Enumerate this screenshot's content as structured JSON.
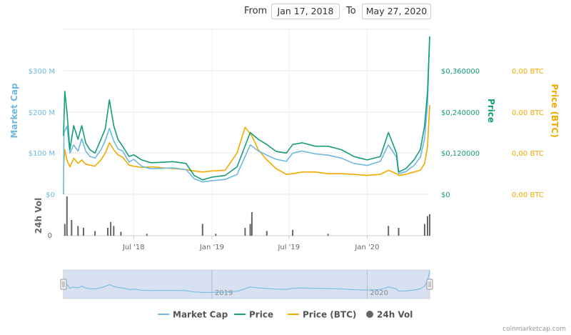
{
  "range": {
    "from_label": "From",
    "from_value": "Jan 17, 2018",
    "to_label": "To",
    "to_value": "May 27, 2020"
  },
  "colors": {
    "market_cap": "#6cb8e0",
    "price": "#139d77",
    "price_btc": "#f2a900",
    "volume": "#666666",
    "navigator_fill": "#c9d7ec"
  },
  "chart_data": {
    "type": "line",
    "x_start": "2018-01-17",
    "x_end": "2020-05-27",
    "x_ticks": [
      {
        "date": "2018-07-01",
        "label": "Jul '18"
      },
      {
        "date": "2019-01-01",
        "label": "Jan '19"
      },
      {
        "date": "2019-07-01",
        "label": "Jul '19"
      },
      {
        "date": "2020-01-01",
        "label": "Jan '20"
      }
    ],
    "navigator_ticks": [
      {
        "date": "2019-01-01",
        "label": "2019"
      },
      {
        "date": "2020-01-01",
        "label": "2020"
      }
    ],
    "axes": {
      "market_cap": {
        "title": "Market Cap",
        "ylim": [
          0,
          300000000
        ],
        "ticks": [
          "$0",
          "$100 M",
          "$200 M",
          "$300 M"
        ]
      },
      "price": {
        "title": "Price",
        "ylim": [
          0,
          0.36
        ],
        "ticks": [
          "$0",
          "$0,120000",
          "$0,240000",
          "$0,360000"
        ]
      },
      "price_btc": {
        "title": "Price (BTC)",
        "ticks": [
          "0,00 BTC",
          "0,00 BTC",
          "0,00 BTC",
          "0,00 BTC"
        ]
      },
      "volume": {
        "title": "24h Vol",
        "ticks": [
          "0"
        ]
      }
    },
    "series": [
      {
        "name": "Market Cap",
        "key": "market_cap",
        "points": [
          [
            "2018-01-17",
            0
          ],
          [
            "2018-01-18",
            150000000
          ],
          [
            "2018-01-25",
            165000000
          ],
          [
            "2018-02-01",
            100000000
          ],
          [
            "2018-02-10",
            120000000
          ],
          [
            "2018-02-20",
            105000000
          ],
          [
            "2018-03-01",
            135000000
          ],
          [
            "2018-03-10",
            105000000
          ],
          [
            "2018-03-20",
            92000000
          ],
          [
            "2018-04-01",
            88000000
          ],
          [
            "2018-04-15",
            108000000
          ],
          [
            "2018-04-25",
            130000000
          ],
          [
            "2018-05-05",
            160000000
          ],
          [
            "2018-05-15",
            130000000
          ],
          [
            "2018-05-25",
            110000000
          ],
          [
            "2018-06-05",
            105000000
          ],
          [
            "2018-06-20",
            78000000
          ],
          [
            "2018-07-01",
            85000000
          ],
          [
            "2018-07-20",
            68000000
          ],
          [
            "2018-08-10",
            62000000
          ],
          [
            "2018-09-01",
            63000000
          ],
          [
            "2018-10-01",
            64000000
          ],
          [
            "2018-11-01",
            60000000
          ],
          [
            "2018-11-20",
            38000000
          ],
          [
            "2018-12-10",
            30000000
          ],
          [
            "2019-01-01",
            33000000
          ],
          [
            "2019-02-01",
            36000000
          ],
          [
            "2019-03-01",
            48000000
          ],
          [
            "2019-04-01",
            120000000
          ],
          [
            "2019-04-20",
            105000000
          ],
          [
            "2019-05-10",
            95000000
          ],
          [
            "2019-06-01",
            85000000
          ],
          [
            "2019-06-25",
            80000000
          ],
          [
            "2019-07-10",
            100000000
          ],
          [
            "2019-08-01",
            105000000
          ],
          [
            "2019-09-01",
            98000000
          ],
          [
            "2019-10-01",
            95000000
          ],
          [
            "2019-11-01",
            88000000
          ],
          [
            "2019-12-01",
            75000000
          ],
          [
            "2020-01-01",
            70000000
          ],
          [
            "2020-02-01",
            80000000
          ],
          [
            "2020-02-20",
            120000000
          ],
          [
            "2020-03-10",
            90000000
          ],
          [
            "2020-03-15",
            50000000
          ],
          [
            "2020-04-01",
            55000000
          ],
          [
            "2020-04-20",
            70000000
          ],
          [
            "2020-05-05",
            90000000
          ],
          [
            "2020-05-15",
            135000000
          ],
          [
            "2020-05-22",
            220000000
          ],
          [
            "2020-05-27",
            390000000
          ]
        ]
      },
      {
        "name": "Price",
        "key": "price",
        "points": [
          [
            "2018-01-17",
            0.17
          ],
          [
            "2018-01-20",
            0.3
          ],
          [
            "2018-01-25",
            0.24
          ],
          [
            "2018-02-01",
            0.13
          ],
          [
            "2018-02-10",
            0.2
          ],
          [
            "2018-02-20",
            0.16
          ],
          [
            "2018-03-01",
            0.2
          ],
          [
            "2018-03-10",
            0.15
          ],
          [
            "2018-03-20",
            0.13
          ],
          [
            "2018-04-01",
            0.12
          ],
          [
            "2018-04-15",
            0.16
          ],
          [
            "2018-04-25",
            0.19
          ],
          [
            "2018-05-05",
            0.275
          ],
          [
            "2018-05-15",
            0.2
          ],
          [
            "2018-05-25",
            0.16
          ],
          [
            "2018-06-05",
            0.14
          ],
          [
            "2018-06-20",
            0.11
          ],
          [
            "2018-07-01",
            0.115
          ],
          [
            "2018-07-20",
            0.1
          ],
          [
            "2018-08-10",
            0.092
          ],
          [
            "2018-09-01",
            0.093
          ],
          [
            "2018-10-01",
            0.095
          ],
          [
            "2018-11-01",
            0.09
          ],
          [
            "2018-11-20",
            0.055
          ],
          [
            "2018-12-10",
            0.042
          ],
          [
            "2019-01-01",
            0.05
          ],
          [
            "2019-02-01",
            0.055
          ],
          [
            "2019-03-01",
            0.08
          ],
          [
            "2019-04-01",
            0.18
          ],
          [
            "2019-04-20",
            0.16
          ],
          [
            "2019-05-10",
            0.145
          ],
          [
            "2019-06-01",
            0.125
          ],
          [
            "2019-06-25",
            0.12
          ],
          [
            "2019-07-10",
            0.145
          ],
          [
            "2019-08-01",
            0.15
          ],
          [
            "2019-09-01",
            0.14
          ],
          [
            "2019-10-01",
            0.14
          ],
          [
            "2019-11-01",
            0.13
          ],
          [
            "2019-12-01",
            0.11
          ],
          [
            "2020-01-01",
            0.1
          ],
          [
            "2020-02-01",
            0.11
          ],
          [
            "2020-02-20",
            0.18
          ],
          [
            "2020-03-10",
            0.12
          ],
          [
            "2020-03-15",
            0.065
          ],
          [
            "2020-04-01",
            0.075
          ],
          [
            "2020-04-20",
            0.1
          ],
          [
            "2020-05-05",
            0.13
          ],
          [
            "2020-05-15",
            0.2
          ],
          [
            "2020-05-22",
            0.3
          ],
          [
            "2020-05-27",
            0.46
          ]
        ]
      },
      {
        "name": "Price (BTC)",
        "key": "price_btc",
        "points": [
          [
            "2018-01-17",
            0.078
          ],
          [
            "2018-01-20",
            0.13
          ],
          [
            "2018-01-25",
            0.1
          ],
          [
            "2018-02-01",
            0.08
          ],
          [
            "2018-02-10",
            0.105
          ],
          [
            "2018-02-20",
            0.09
          ],
          [
            "2018-03-01",
            0.1
          ],
          [
            "2018-03-10",
            0.088
          ],
          [
            "2018-03-20",
            0.085
          ],
          [
            "2018-04-01",
            0.082
          ],
          [
            "2018-04-15",
            0.1
          ],
          [
            "2018-04-25",
            0.12
          ],
          [
            "2018-05-05",
            0.15
          ],
          [
            "2018-05-15",
            0.13
          ],
          [
            "2018-05-25",
            0.115
          ],
          [
            "2018-06-05",
            0.108
          ],
          [
            "2018-06-20",
            0.085
          ],
          [
            "2018-07-01",
            0.082
          ],
          [
            "2018-07-20",
            0.078
          ],
          [
            "2018-08-10",
            0.08
          ],
          [
            "2018-09-01",
            0.078
          ],
          [
            "2018-10-01",
            0.075
          ],
          [
            "2018-11-01",
            0.072
          ],
          [
            "2018-11-20",
            0.068
          ],
          [
            "2018-12-10",
            0.065
          ],
          [
            "2019-01-01",
            0.068
          ],
          [
            "2019-02-01",
            0.07
          ],
          [
            "2019-03-01",
            0.12
          ],
          [
            "2019-03-20",
            0.195
          ],
          [
            "2019-04-05",
            0.17
          ],
          [
            "2019-04-20",
            0.13
          ],
          [
            "2019-05-10",
            0.1
          ],
          [
            "2019-06-01",
            0.075
          ],
          [
            "2019-06-25",
            0.058
          ],
          [
            "2019-07-10",
            0.06
          ],
          [
            "2019-08-01",
            0.065
          ],
          [
            "2019-09-01",
            0.065
          ],
          [
            "2019-10-01",
            0.06
          ],
          [
            "2019-11-01",
            0.06
          ],
          [
            "2019-12-01",
            0.058
          ],
          [
            "2020-01-01",
            0.055
          ],
          [
            "2020-02-01",
            0.058
          ],
          [
            "2020-02-20",
            0.07
          ],
          [
            "2020-03-10",
            0.06
          ],
          [
            "2020-03-15",
            0.055
          ],
          [
            "2020-04-01",
            0.058
          ],
          [
            "2020-04-20",
            0.065
          ],
          [
            "2020-05-05",
            0.07
          ],
          [
            "2020-05-15",
            0.09
          ],
          [
            "2020-05-22",
            0.14
          ],
          [
            "2020-05-27",
            0.26
          ]
        ]
      },
      {
        "name": "24h Vol",
        "key": "volume",
        "points": [
          [
            "2018-01-20",
            0.3
          ],
          [
            "2018-01-25",
            1.0
          ],
          [
            "2018-02-05",
            0.4
          ],
          [
            "2018-02-20",
            0.25
          ],
          [
            "2018-03-05",
            0.2
          ],
          [
            "2018-04-01",
            0.12
          ],
          [
            "2018-05-01",
            0.2
          ],
          [
            "2018-05-08",
            0.35
          ],
          [
            "2018-05-15",
            0.25
          ],
          [
            "2018-06-01",
            0.1
          ],
          [
            "2018-08-01",
            0.05
          ],
          [
            "2018-12-10",
            0.3
          ],
          [
            "2019-01-10",
            0.05
          ],
          [
            "2019-03-20",
            0.2
          ],
          [
            "2019-04-01",
            0.3
          ],
          [
            "2019-04-05",
            0.6
          ],
          [
            "2019-05-10",
            0.12
          ],
          [
            "2019-07-10",
            0.15
          ],
          [
            "2019-10-01",
            0.05
          ],
          [
            "2020-02-20",
            0.25
          ],
          [
            "2020-03-15",
            0.2
          ],
          [
            "2020-05-15",
            0.3
          ],
          [
            "2020-05-22",
            0.5
          ],
          [
            "2020-05-27",
            0.55
          ]
        ]
      }
    ]
  },
  "legend": [
    {
      "label": "Market Cap",
      "key": "market_cap",
      "marker": "line"
    },
    {
      "label": "Price",
      "key": "price",
      "marker": "line"
    },
    {
      "label": "Price (BTC)",
      "key": "price_btc",
      "marker": "line"
    },
    {
      "label": "24h Vol",
      "key": "volume",
      "marker": "dot"
    }
  ],
  "credit": "coinmarketcap.com"
}
